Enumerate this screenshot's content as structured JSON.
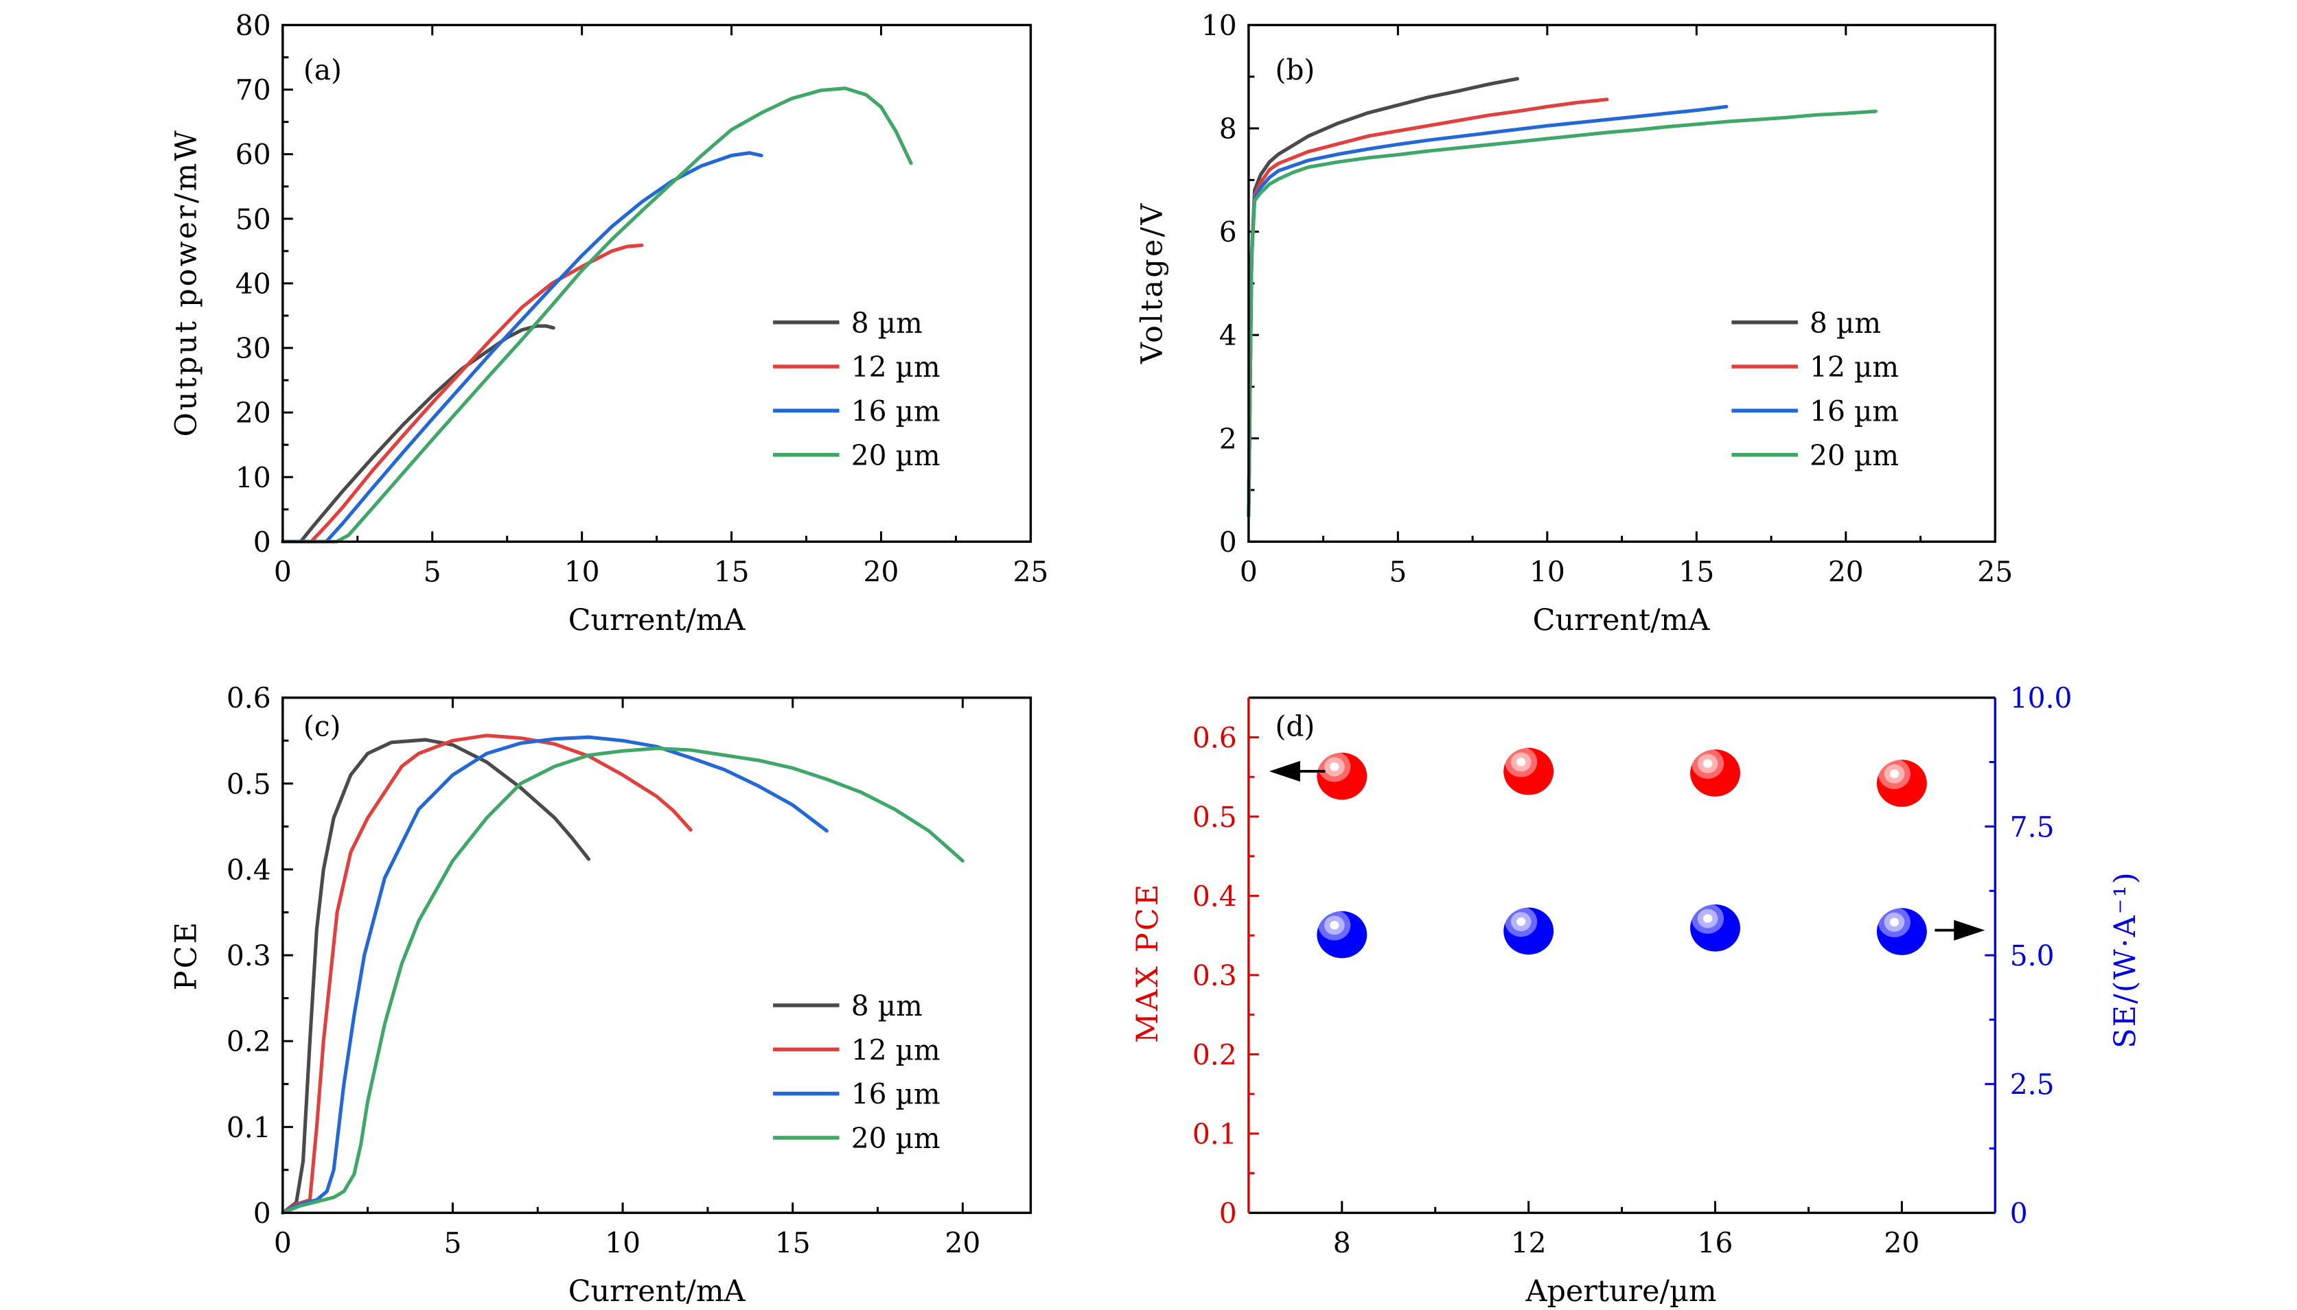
{
  "colors": {
    "8um": "#4a4a4a",
    "12um": "#e0413f",
    "16um": "#2468d6",
    "20um": "#3fa868",
    "max_pce": "#ff0000",
    "se": "#0000ff",
    "left_axis_d": "#e00000",
    "right_axis_d": "#0000e0"
  },
  "chart_data": [
    {
      "panel": "a",
      "type": "line",
      "panel_label": "(a)",
      "title": "",
      "xlabel": "Current/mA",
      "ylabel": "Output power/mW",
      "xlim": [
        0,
        25
      ],
      "ylim": [
        0,
        80
      ],
      "xticks": [
        0,
        5,
        10,
        15,
        20,
        25
      ],
      "yticks": [
        0,
        10,
        20,
        30,
        40,
        50,
        60,
        70,
        80
      ],
      "xtick_labels": [
        "0",
        "5",
        "10",
        "15",
        "20",
        "25"
      ],
      "ytick_labels": [
        "0",
        "10",
        "20",
        "30",
        "40",
        "50",
        "60",
        "70",
        "80"
      ],
      "grid": false,
      "legend": "center-right",
      "series": [
        {
          "name": "8 µm",
          "color_key": "8um",
          "x": [
            0,
            0.6,
            1,
            2,
            3,
            4,
            5,
            6,
            7,
            7.5,
            8,
            8.5,
            8.8,
            9.05
          ],
          "y": [
            0,
            0,
            2.3,
            7.8,
            13,
            18,
            22.6,
            26.8,
            30,
            31.6,
            32.8,
            33.4,
            33.4,
            33.1
          ]
        },
        {
          "name": "12 µm",
          "color_key": "12um",
          "x": [
            0,
            0.95,
            1.5,
            2,
            3,
            4,
            5,
            6,
            7,
            8,
            9,
            10,
            10.5,
            11,
            11.5,
            12
          ],
          "y": [
            0,
            0,
            2.7,
            5.3,
            11,
            16.3,
            21.5,
            26.5,
            31.5,
            36.3,
            40,
            42.6,
            43.8,
            45,
            45.7,
            45.9
          ]
        },
        {
          "name": "16 µm",
          "color_key": "16um",
          "x": [
            0,
            1.45,
            2,
            3,
            4,
            5,
            6,
            7,
            8,
            9,
            10,
            11,
            12,
            13,
            14,
            15,
            15.6,
            16
          ],
          "y": [
            0,
            0,
            2.8,
            8.3,
            13.7,
            19,
            24.2,
            29.4,
            34.4,
            39.4,
            44.3,
            48.8,
            52.6,
            55.8,
            58.2,
            59.8,
            60.2,
            59.8
          ]
        },
        {
          "name": "20 µm",
          "color_key": "20um",
          "x": [
            0,
            1.8,
            2.2,
            3,
            4,
            5,
            6,
            7,
            8,
            9,
            10,
            11,
            12,
            13,
            14,
            15,
            16,
            17,
            18,
            18.8,
            19.5,
            20,
            20.5,
            21
          ],
          "y": [
            0,
            0,
            1,
            5.2,
            10.5,
            15.8,
            21,
            26.2,
            31.3,
            36.6,
            42,
            46.8,
            51.2,
            55.5,
            59.8,
            63.8,
            66.4,
            68.6,
            69.9,
            70.2,
            69.2,
            67.3,
            63.5,
            58.6
          ]
        }
      ]
    },
    {
      "panel": "b",
      "type": "line",
      "panel_label": "(b)",
      "title": "",
      "xlabel": "Current/mA",
      "ylabel": "Voltage/V",
      "xlim": [
        0,
        25
      ],
      "ylim": [
        0,
        10
      ],
      "xticks": [
        0,
        5,
        10,
        15,
        20,
        25
      ],
      "yticks": [
        0,
        2,
        4,
        6,
        8,
        10
      ],
      "xtick_labels": [
        "0",
        "5",
        "10",
        "15",
        "20",
        "25"
      ],
      "ytick_labels": [
        "0",
        "2",
        "4",
        "6",
        "8",
        "10"
      ],
      "grid": false,
      "legend": "center-right",
      "series": [
        {
          "name": "8 µm",
          "color_key": "8um",
          "x": [
            0,
            0.05,
            0.1,
            0.2,
            0.4,
            0.7,
            1,
            2,
            3,
            4,
            5,
            6,
            7,
            8,
            9
          ],
          "y": [
            0.5,
            3,
            5.5,
            6.8,
            7.1,
            7.35,
            7.5,
            7.85,
            8.1,
            8.3,
            8.45,
            8.6,
            8.72,
            8.85,
            8.96
          ]
        },
        {
          "name": "12 µm",
          "color_key": "12um",
          "x": [
            0,
            0.05,
            0.1,
            0.2,
            0.4,
            0.7,
            1,
            2,
            3,
            4,
            5,
            6,
            7,
            8,
            9,
            10,
            11,
            12
          ],
          "y": [
            0.5,
            3,
            5.5,
            6.7,
            6.95,
            7.2,
            7.32,
            7.55,
            7.7,
            7.85,
            7.95,
            8.05,
            8.15,
            8.25,
            8.33,
            8.42,
            8.5,
            8.56
          ]
        },
        {
          "name": "16 µm",
          "color_key": "16um",
          "x": [
            0,
            0.05,
            0.1,
            0.2,
            0.4,
            0.7,
            1,
            2,
            3,
            4,
            5,
            6,
            7,
            8,
            9,
            10,
            11,
            12,
            13,
            14,
            15,
            16
          ],
          "y": [
            0.5,
            3,
            5.5,
            6.65,
            6.85,
            7.05,
            7.18,
            7.38,
            7.5,
            7.6,
            7.69,
            7.77,
            7.84,
            7.91,
            7.98,
            8.05,
            8.11,
            8.17,
            8.23,
            8.29,
            8.35,
            8.42
          ]
        },
        {
          "name": "20 µm",
          "color_key": "20um",
          "x": [
            0,
            0.05,
            0.1,
            0.2,
            0.4,
            0.7,
            1,
            1.5,
            2,
            3,
            4,
            5,
            6,
            7,
            8,
            9,
            10,
            11,
            12,
            13,
            14,
            15,
            16,
            17,
            18,
            19,
            20,
            21
          ],
          "y": [
            0.5,
            3,
            5.5,
            6.6,
            6.75,
            6.92,
            7.02,
            7.15,
            7.25,
            7.35,
            7.43,
            7.49,
            7.56,
            7.62,
            7.68,
            7.74,
            7.8,
            7.86,
            7.92,
            7.97,
            8.03,
            8.08,
            8.13,
            8.17,
            8.21,
            8.26,
            8.29,
            8.33
          ]
        }
      ]
    },
    {
      "panel": "c",
      "type": "line",
      "panel_label": "(c)",
      "title": "",
      "xlabel": "Current/mA",
      "ylabel": "PCE",
      "xlim": [
        0,
        22
      ],
      "ylim": [
        0,
        0.6
      ],
      "xticks": [
        0,
        5,
        10,
        15,
        20
      ],
      "yticks": [
        0,
        0.1,
        0.2,
        0.3,
        0.4,
        0.5,
        0.6
      ],
      "xtick_labels": [
        "0",
        "5",
        "10",
        "15",
        "20"
      ],
      "ytick_labels": [
        "0",
        "0.1",
        "0.2",
        "0.3",
        "0.4",
        "0.5",
        "0.6"
      ],
      "grid": false,
      "legend": "bottom-right",
      "series": [
        {
          "name": "8 µm",
          "color_key": "8um",
          "x": [
            0,
            0.4,
            0.6,
            0.8,
            1,
            1.2,
            1.5,
            2,
            2.5,
            3.2,
            4.2,
            5,
            6,
            7,
            8,
            8.5,
            9
          ],
          "y": [
            0,
            0.012,
            0.06,
            0.2,
            0.33,
            0.4,
            0.46,
            0.51,
            0.535,
            0.548,
            0.551,
            0.545,
            0.525,
            0.495,
            0.46,
            0.437,
            0.412
          ]
        },
        {
          "name": "12 µm",
          "color_key": "12um",
          "x": [
            0,
            0.4,
            0.8,
            1,
            1.2,
            1.6,
            2,
            2.5,
            3,
            3.5,
            4,
            5,
            6,
            7,
            8,
            9,
            10,
            11,
            11.5,
            12
          ],
          "y": [
            0,
            0.01,
            0.015,
            0.1,
            0.2,
            0.35,
            0.42,
            0.46,
            0.49,
            0.52,
            0.535,
            0.55,
            0.556,
            0.553,
            0.546,
            0.532,
            0.51,
            0.485,
            0.468,
            0.446
          ]
        },
        {
          "name": "16 µm",
          "color_key": "16um",
          "x": [
            0,
            0.5,
            1,
            1.3,
            1.5,
            1.8,
            2.1,
            2.4,
            3,
            3.5,
            4,
            5,
            6,
            7,
            8,
            9,
            10,
            11,
            12,
            13,
            14,
            15,
            16
          ],
          "y": [
            0,
            0.01,
            0.015,
            0.025,
            0.05,
            0.15,
            0.23,
            0.3,
            0.39,
            0.43,
            0.47,
            0.51,
            0.535,
            0.547,
            0.552,
            0.554,
            0.55,
            0.543,
            0.53,
            0.516,
            0.497,
            0.475,
            0.445
          ]
        },
        {
          "name": "20 µm",
          "color_key": "20um",
          "x": [
            0,
            0.5,
            1,
            1.5,
            1.8,
            2.1,
            2.3,
            2.5,
            3,
            3.5,
            4,
            5,
            6,
            7,
            8,
            9,
            10,
            11,
            12,
            13,
            14,
            15,
            16,
            17,
            18,
            19,
            20
          ],
          "y": [
            0,
            0.008,
            0.013,
            0.018,
            0.025,
            0.045,
            0.08,
            0.13,
            0.22,
            0.29,
            0.34,
            0.41,
            0.46,
            0.5,
            0.52,
            0.533,
            0.538,
            0.541,
            0.539,
            0.533,
            0.527,
            0.518,
            0.505,
            0.49,
            0.47,
            0.445,
            0.41
          ]
        }
      ]
    },
    {
      "panel": "d",
      "type": "scatter",
      "panel_label": "(d)",
      "title": "",
      "xlabel": "Aperture/µm",
      "ylabel": "MAX PCE",
      "y2label": "SE/(W·A⁻¹)",
      "xlim": [
        6,
        22
      ],
      "ylim": [
        0,
        0.65
      ],
      "y2lim": [
        0,
        10
      ],
      "xticks": [
        8,
        12,
        16,
        20
      ],
      "xtick_labels": [
        "8",
        "12",
        "16",
        "20"
      ],
      "yticks": [
        0,
        0.1,
        0.2,
        0.3,
        0.4,
        0.5,
        0.6
      ],
      "ytick_labels": [
        "0",
        "0.1",
        "0.2",
        "0.3",
        "0.4",
        "0.5",
        "0.6"
      ],
      "y2ticks": [
        0,
        2.5,
        5.0,
        7.5,
        10.0
      ],
      "y2tick_labels": [
        "0",
        "2.5",
        "5.0",
        "7.5",
        "10.0"
      ],
      "grid": false,
      "legend": "none",
      "annotations": [
        "left arrow pointing to MAX PCE axis",
        "right arrow pointing to SE axis"
      ],
      "x": [
        8,
        12,
        16,
        20
      ],
      "series": [
        {
          "name": "MAX PCE",
          "axis": "left",
          "color_key": "max_pce",
          "values": [
            0.551,
            0.557,
            0.555,
            0.542
          ]
        },
        {
          "name": "SE",
          "axis": "right",
          "color_key": "se",
          "values": [
            5.4,
            5.47,
            5.53,
            5.46
          ]
        }
      ]
    }
  ]
}
